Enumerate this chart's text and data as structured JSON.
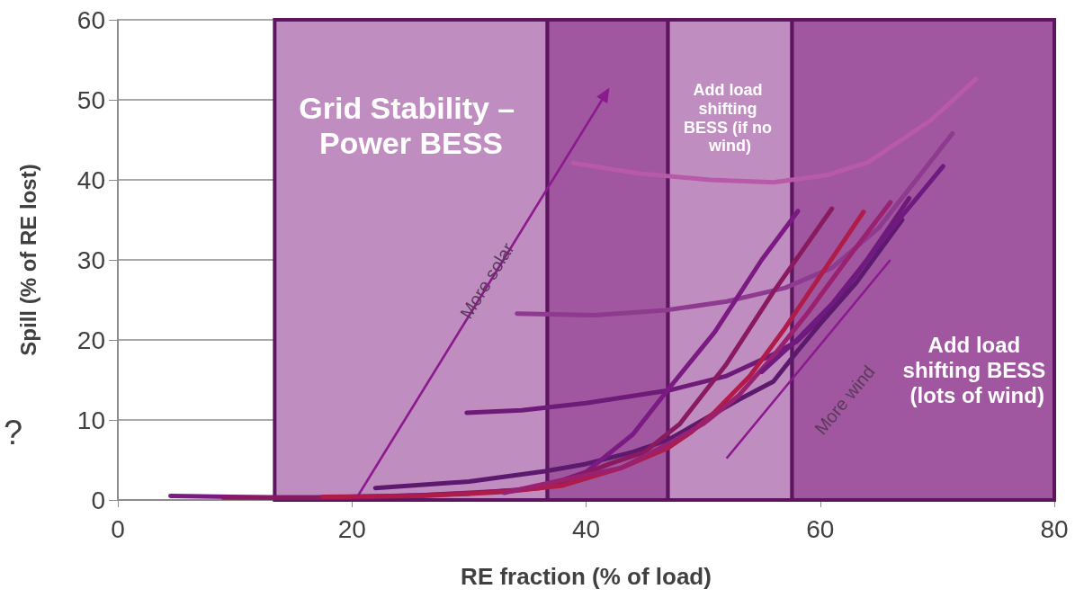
{
  "chart_data": {
    "type": "line",
    "xlabel": "RE fraction (% of load)",
    "ylabel": "Spill (% of RE lost)",
    "xlim": [
      0,
      80
    ],
    "xticks": [
      0,
      20,
      40,
      60,
      80
    ],
    "ylim": [
      0,
      60
    ],
    "yticks": [
      0,
      10,
      20,
      30,
      40,
      50,
      60
    ],
    "grid": "y",
    "marker": "none",
    "line_style": "solid",
    "series": [
      {
        "color": "#b85aa8",
        "x": [
          38.9,
          44.5,
          50.6,
          56,
          60.6,
          64.1,
          69.5,
          73.3
        ],
        "values": [
          42.1,
          40.8,
          40,
          39.7,
          40.6,
          42.2,
          47.5,
          52.6
        ]
      },
      {
        "color": "#8e3a8e",
        "x": [
          34.1,
          40.7,
          46.8,
          52,
          57,
          61,
          65,
          71.3
        ],
        "values": [
          23.3,
          23.1,
          23.7,
          24.8,
          26.5,
          29,
          34,
          45.8
        ]
      },
      {
        "color": "#6e1a78",
        "x": [
          29.8,
          34.5,
          40,
          44,
          47.1,
          52,
          56,
          58,
          61,
          64,
          67.6
        ],
        "values": [
          10.9,
          11.2,
          12.1,
          13,
          13.7,
          15.5,
          18.2,
          19.8,
          24,
          30,
          37.7
        ]
      },
      {
        "color": "#5c1a6e",
        "x": [
          22,
          30,
          36.5,
          40,
          44,
          47,
          50,
          53,
          56,
          58,
          60,
          63,
          67
        ],
        "values": [
          1.5,
          2.3,
          3.6,
          4.5,
          6,
          7.5,
          10,
          12.5,
          14.8,
          18.5,
          22,
          27,
          35
        ]
      },
      {
        "color": "#7a1a82",
        "x": [
          4.5,
          13.5,
          20,
          30,
          36,
          40,
          44,
          47,
          51,
          55,
          58.1
        ],
        "values": [
          0.5,
          0.3,
          0.3,
          0.8,
          1.5,
          3.5,
          8.2,
          13.8,
          21,
          30,
          36.1
        ]
      },
      {
        "color": "#8a1a60",
        "x": [
          9,
          17,
          26,
          34,
          38,
          42,
          45,
          48,
          52,
          56,
          61
        ],
        "values": [
          0.3,
          0.3,
          0.6,
          1.2,
          2.2,
          4.5,
          6,
          9.5,
          17,
          26,
          36.4
        ]
      },
      {
        "color": "#b01c4a",
        "x": [
          17.5,
          26,
          33,
          38,
          43,
          47,
          49,
          51,
          54,
          57,
          60,
          63.7
        ],
        "values": [
          0.4,
          0.5,
          1,
          1.8,
          4,
          6.5,
          8.5,
          11,
          15.5,
          21.5,
          28,
          36
        ]
      },
      {
        "color": "#9a2070",
        "x": [
          33,
          38,
          43,
          47,
          50,
          53,
          56,
          59,
          62,
          66
        ],
        "values": [
          0.9,
          2.5,
          4,
          7,
          9.5,
          13,
          18,
          23.5,
          29.5,
          37.2
        ]
      },
      {
        "color": "#6e1a80",
        "x": [
          55,
          58,
          61,
          64,
          67,
          70.5
        ],
        "values": [
          16,
          20,
          24.5,
          30,
          35.5,
          41.7
        ]
      }
    ],
    "bands": [
      {
        "axis": "x",
        "from": 13.4,
        "to": 36.7,
        "color": "#c08dc0",
        "label": "Grid Stability – Power BESS"
      },
      {
        "axis": "x",
        "from": 36.7,
        "to": 47,
        "color": "#a057a0"
      },
      {
        "axis": "x",
        "from": 47,
        "to": 57.6,
        "color": "#c08dc0",
        "label": "Add load shifting BESS (if no wind)"
      },
      {
        "axis": "x",
        "from": 57.6,
        "to": 80,
        "color": "#a057a0",
        "label": "Add load shifting BESS (lots of wind)"
      }
    ],
    "annotations": [
      "More solar",
      "More wind",
      "?"
    ]
  }
}
